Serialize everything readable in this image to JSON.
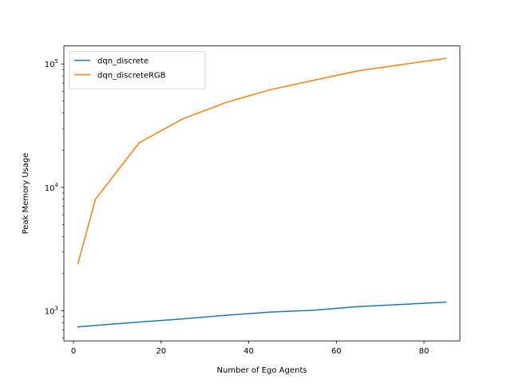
{
  "chart_data": {
    "type": "line",
    "xlabel": "Number of Ego Agents",
    "ylabel": "Peak Memory Usage",
    "xlim": [
      -2.2,
      88.2
    ],
    "ylim": [
      570,
      140000
    ],
    "yscale": "log",
    "grid": false,
    "legend_position": "top-left",
    "x_ticks": [
      {
        "value": 0,
        "label": "0"
      },
      {
        "value": 20,
        "label": "20"
      },
      {
        "value": 40,
        "label": "40"
      },
      {
        "value": 60,
        "label": "60"
      },
      {
        "value": 80,
        "label": "80"
      }
    ],
    "y_ticks": [
      {
        "value": 1000,
        "base": "10",
        "exp": "3"
      },
      {
        "value": 10000,
        "base": "10",
        "exp": "4"
      },
      {
        "value": 100000,
        "base": "10",
        "exp": "5"
      }
    ],
    "series": [
      {
        "name": "dqn_discrete",
        "color": "#1f77b4",
        "x": [
          1,
          5,
          15,
          25,
          35,
          45,
          55,
          65,
          75,
          85
        ],
        "y": [
          740,
          760,
          810,
          860,
          920,
          975,
          1010,
          1080,
          1125,
          1175
        ]
      },
      {
        "name": "dqn_discreteRGB",
        "color": "#ff7f0e",
        "x": [
          1,
          5,
          15,
          25,
          35,
          45,
          55,
          65,
          75,
          85
        ],
        "y": [
          2400,
          8000,
          23000,
          36000,
          49000,
          62000,
          74000,
          88000,
          99000,
          111000
        ]
      }
    ]
  }
}
